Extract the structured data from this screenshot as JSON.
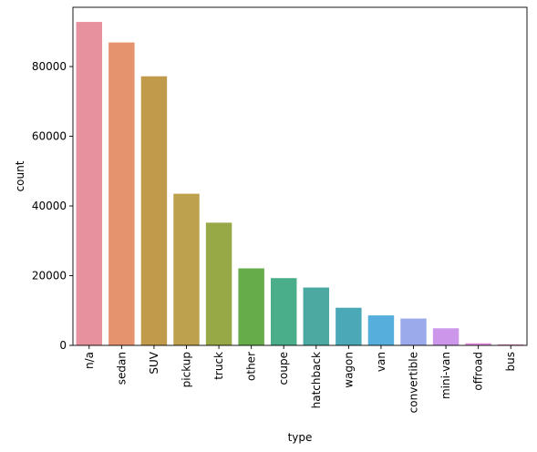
{
  "chart_data": {
    "type": "bar",
    "title": "",
    "xlabel": "type",
    "ylabel": "count",
    "categories": [
      "n/a",
      "sedan",
      "SUV",
      "pickup",
      "truck",
      "other",
      "coupe",
      "hatchback",
      "wagon",
      "van",
      "convertible",
      "mini-van",
      "offroad",
      "bus"
    ],
    "values": [
      92800,
      86900,
      77200,
      43500,
      35200,
      22100,
      19300,
      16600,
      10800,
      8600,
      7700,
      4900,
      600,
      300
    ],
    "colors": [
      "#E8919E",
      "#E5926E",
      "#C19A4B",
      "#BDA14F",
      "#97A946",
      "#66AC4B",
      "#4BAE8A",
      "#4BA9A1",
      "#4AA8B7",
      "#55AEDB",
      "#9AAAEA",
      "#CC96EB",
      "#E38DDB",
      "#E88EC2"
    ],
    "ylim": [
      0,
      97000
    ],
    "yticks": [
      0,
      20000,
      40000,
      60000,
      80000
    ],
    "grid": false,
    "legend": "none"
  }
}
